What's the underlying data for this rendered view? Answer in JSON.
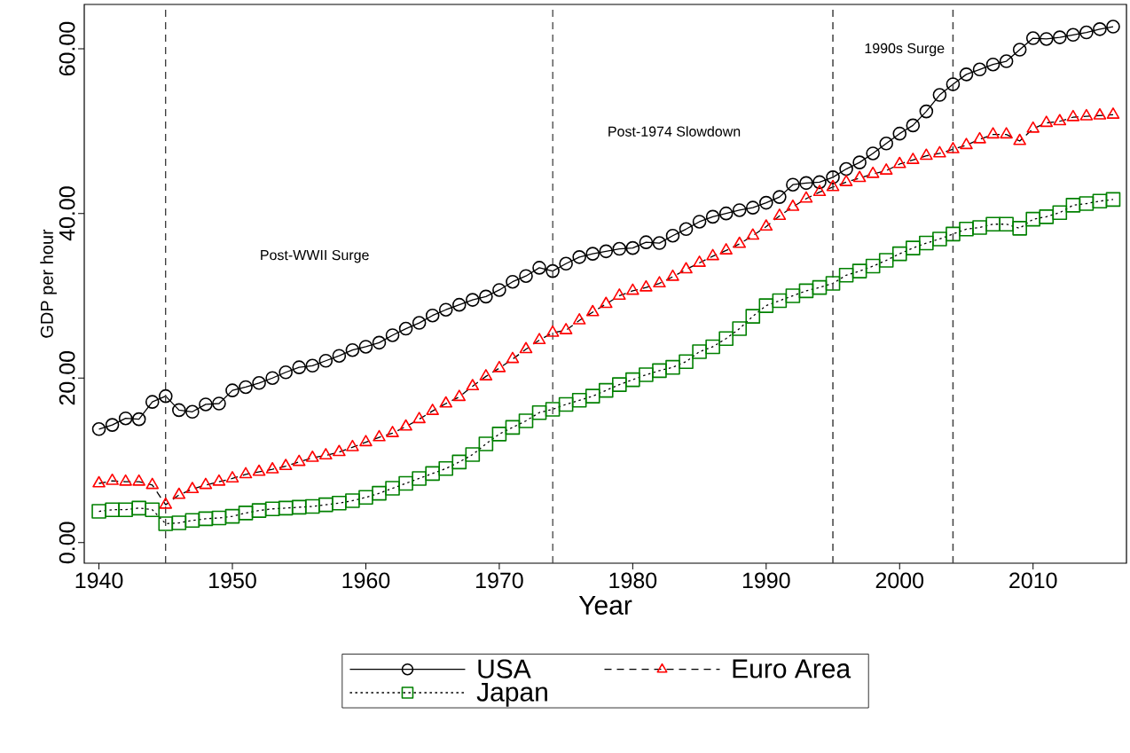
{
  "chart_data": {
    "type": "line",
    "xlabel": "Year",
    "ylabel": "GDP per hour",
    "x": [
      1940,
      1941,
      1942,
      1943,
      1944,
      1945,
      1946,
      1947,
      1948,
      1949,
      1950,
      1951,
      1952,
      1953,
      1954,
      1955,
      1956,
      1957,
      1958,
      1959,
      1960,
      1961,
      1962,
      1963,
      1964,
      1965,
      1966,
      1967,
      1968,
      1969,
      1970,
      1971,
      1972,
      1973,
      1974,
      1975,
      1976,
      1977,
      1978,
      1979,
      1980,
      1981,
      1982,
      1983,
      1984,
      1985,
      1986,
      1987,
      1988,
      1989,
      1990,
      1991,
      1992,
      1993,
      1994,
      1995,
      1996,
      1997,
      1998,
      1999,
      2000,
      2001,
      2002,
      2003,
      2004,
      2005,
      2006,
      2007,
      2008,
      2009,
      2010,
      2011,
      2012,
      2013,
      2014,
      2015,
      2016
    ],
    "series": [
      {
        "name": "USA",
        "color": "#000000",
        "marker": "circle",
        "line_style": "solid",
        "values": [
          13.8,
          14.3,
          15.1,
          15.0,
          17.1,
          17.8,
          16.1,
          15.9,
          16.8,
          16.9,
          18.5,
          18.9,
          19.4,
          20.0,
          20.7,
          21.3,
          21.5,
          22.1,
          22.7,
          23.4,
          23.8,
          24.3,
          25.2,
          26.0,
          26.7,
          27.6,
          28.3,
          28.9,
          29.5,
          29.9,
          30.7,
          31.7,
          32.4,
          33.4,
          33.0,
          33.9,
          34.7,
          35.1,
          35.4,
          35.7,
          35.8,
          36.5,
          36.4,
          37.3,
          38.1,
          39.0,
          39.6,
          40.0,
          40.4,
          40.7,
          41.3,
          42.0,
          43.5,
          43.7,
          43.8,
          44.4,
          45.4,
          46.2,
          47.3,
          48.5,
          49.7,
          50.7,
          52.4,
          54.4,
          55.7,
          56.9,
          57.5,
          58.1,
          58.5,
          59.9,
          61.3,
          61.2,
          61.4,
          61.7,
          62.0,
          62.4,
          62.7
        ]
      },
      {
        "name": "Euro Area",
        "color": "#ff0000",
        "marker": "triangle",
        "line_style": "dashed",
        "values": [
          7.2,
          7.5,
          7.4,
          7.4,
          7.0,
          4.6,
          5.8,
          6.5,
          7.0,
          7.4,
          7.8,
          8.3,
          8.6,
          8.9,
          9.3,
          9.8,
          10.3,
          10.6,
          11.0,
          11.6,
          12.2,
          12.8,
          13.3,
          14.1,
          15.0,
          16.0,
          16.9,
          17.7,
          19.0,
          20.2,
          21.2,
          22.3,
          23.5,
          24.6,
          25.5,
          25.8,
          27.0,
          28.0,
          29.0,
          30.0,
          30.6,
          31.0,
          31.5,
          32.3,
          33.2,
          34.0,
          34.8,
          35.5,
          36.3,
          37.3,
          38.4,
          39.7,
          40.8,
          41.8,
          42.6,
          43.2,
          43.8,
          44.3,
          44.8,
          45.2,
          46.0,
          46.5,
          47.0,
          47.3,
          47.8,
          48.3,
          49.0,
          49.6,
          49.6,
          48.8,
          50.3,
          51.0,
          51.2,
          51.7,
          51.8,
          51.9,
          52.0
        ]
      },
      {
        "name": "Japan",
        "color": "#008000",
        "marker": "square",
        "line_style": "dotted",
        "values": [
          3.8,
          4.0,
          4.0,
          4.2,
          4.0,
          2.3,
          2.4,
          2.7,
          2.9,
          3.0,
          3.2,
          3.6,
          3.9,
          4.1,
          4.2,
          4.3,
          4.4,
          4.6,
          4.8,
          5.1,
          5.5,
          6.0,
          6.6,
          7.2,
          7.8,
          8.4,
          9.0,
          9.8,
          10.7,
          12.0,
          13.2,
          14.0,
          14.8,
          15.8,
          16.2,
          16.8,
          17.3,
          17.8,
          18.5,
          19.2,
          19.8,
          20.4,
          20.9,
          21.3,
          22.0,
          23.2,
          23.8,
          24.8,
          26.0,
          27.5,
          28.8,
          29.4,
          30.0,
          30.6,
          31.0,
          31.5,
          32.5,
          33.0,
          33.6,
          34.3,
          35.1,
          35.8,
          36.4,
          36.9,
          37.5,
          38.1,
          38.3,
          38.7,
          38.7,
          38.2,
          39.3,
          39.6,
          40.1,
          41.0,
          41.2,
          41.5,
          41.7
        ]
      }
    ],
    "xlim": [
      1938.9,
      2017.0
    ],
    "ylim": [
      -2.5,
      65.4
    ],
    "xticks": [
      1940,
      1950,
      1960,
      1970,
      1980,
      1990,
      2000,
      2010
    ],
    "yticks": [
      {
        "value": 0,
        "label": "0.00"
      },
      {
        "value": 20,
        "label": "20.00"
      },
      {
        "value": 40,
        "label": "40.00"
      },
      {
        "value": 60,
        "label": "60.00"
      }
    ],
    "ref_lines": [
      {
        "axis": "x",
        "value": 1945,
        "color": "#404040",
        "line_style": "dashed"
      },
      {
        "axis": "x",
        "value": 1974,
        "color": "#404040",
        "line_style": "dashed"
      },
      {
        "axis": "x",
        "value": 1995,
        "color": "#404040",
        "line_style": "dashed"
      },
      {
        "axis": "x",
        "value": 2004,
        "color": "#404040",
        "line_style": "dashed"
      }
    ],
    "annotations": [
      "Post-WWII Surge",
      "Post-1974 Slowdown",
      "1990s Surge"
    ],
    "legend": "bottom",
    "grid": false
  }
}
